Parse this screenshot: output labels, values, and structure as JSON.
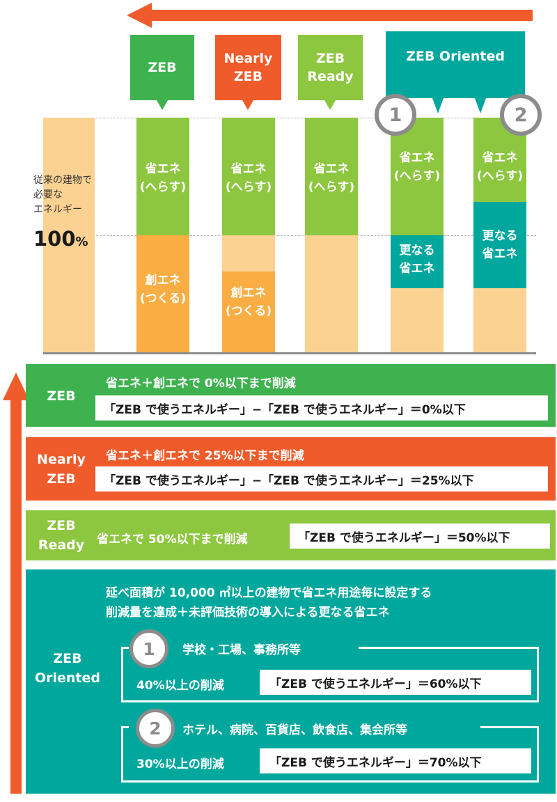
{
  "colors": {
    "green": "#3eb24f",
    "orange": "#ef5b2a",
    "lime": "#8dc63f",
    "teal": "#00a79d",
    "peach": "#fbd292",
    "peach_mid": "#fbbd6e",
    "amber": "#f9ad43",
    "gray": "#8c8c8c"
  },
  "top_tags": {
    "zeb": "ZEB",
    "nearly": "Nearly\nZEB",
    "ready": "ZEB\nReady",
    "oriented": "ZEB Oriented"
  },
  "baseline": {
    "label": "従来の建物で\n必要な\nエネルギー",
    "percent_num": "100",
    "percent_sign": "%"
  },
  "columns": {
    "save": "省エネ\n(へらす)",
    "create": "創エネ\n(つくる)",
    "further": "更なる\n省エネ",
    "badge1": "1",
    "badge2": "2"
  },
  "bands": {
    "zeb": {
      "label": "ZEB",
      "desc": "省エネ＋創エネで 0%以下まで削減",
      "formula": "「ZEB で使うエネルギー」−「ZEB で使うエネルギー」＝0%以下"
    },
    "nearly": {
      "label": "Nearly\nZEB",
      "desc": "省エネ＋創エネで 25%以下まで削減",
      "formula": "「ZEB で使うエネルギー」−「ZEB で使うエネルギー」＝25%以下"
    },
    "ready": {
      "label": "ZEB\nReady",
      "desc": "省エネで 50%以下まで削減",
      "formula": "「ZEB で使うエネルギー」＝50%以下"
    },
    "oriented": {
      "label": "ZEB\nOriented",
      "desc1": "延べ面積が 10,000 ㎡以上の建物で省エネ用途毎に設定する",
      "desc2": "削減量を達成＋未評価技術の導入による更なる省エネ",
      "sub1": {
        "num": "1",
        "title": "学校・工場、事務所等",
        "cut": "40%以上の削減",
        "formula": "「ZEB で使うエネルギー」＝60%以下"
      },
      "sub2": {
        "num": "2",
        "title": "ホテル、病院、百貨店、飲食店、集会所等",
        "cut": "30%以上の削減",
        "formula": "「ZEB で使うエネルギー」＝70%以下"
      }
    }
  }
}
